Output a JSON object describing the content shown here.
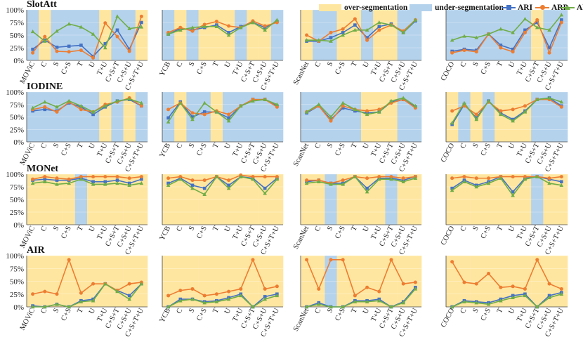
{
  "legend": {
    "over_label": "over-segmentation",
    "under_label": "under-segmentation",
    "ari_label": "ARI",
    "arp_label": "ARP",
    "arr_label": "ARR"
  },
  "colors": {
    "over": "#ffe6a0",
    "under": "#b4d2ec",
    "ARI": "#4472c4",
    "ARP": "#ed7d31",
    "ARR": "#70ad47"
  },
  "chart_data": {
    "type": "line",
    "yticks": [
      "100%",
      "75%",
      "50%",
      "25%",
      "0%"
    ],
    "ylim": [
      0,
      100
    ],
    "datasets": [
      "MOViC",
      "YCB",
      "ScanNet",
      "COCO"
    ],
    "series_names": [
      "ARI",
      "ARP",
      "ARR"
    ],
    "categories": {
      "MOViC": [
        "MOViC",
        "C",
        "S",
        "C+S",
        "T",
        "U",
        "T+U",
        "C+S+T",
        "C+S+U",
        "C+S+T+U"
      ],
      "YCB": [
        "YCB",
        "C",
        "S",
        "C+S",
        "T",
        "U",
        "T+U",
        "C+S+T",
        "C+S+U",
        "C+S+T+U"
      ],
      "ScanNet": [
        "ScanNet",
        "C",
        "S",
        "C+S",
        "T",
        "U",
        "T+U",
        "C+S+T",
        "C+S+U",
        "C+S+T+U"
      ],
      "COCO": [
        "COCO",
        "C",
        "S",
        "C+S",
        "T",
        "U",
        "T+U",
        "C+S+T",
        "C+S+U",
        "C+S+T+U"
      ]
    },
    "methods": [
      {
        "name": "SlotAtt",
        "panels": [
          {
            "dataset": "MOViC",
            "regions": [
              "under",
              "over",
              "under",
              "under",
              "under",
              "under",
              "over",
              "under",
              "under",
              "over"
            ],
            "series": {
              "ARI": [
                22,
                40,
                26,
                28,
                30,
                8,
                33,
                60,
                22,
                75
              ],
              "ARP": [
                15,
                47,
                18,
                17,
                20,
                5,
                74,
                47,
                18,
                87
              ],
              "ARR": [
                57,
                38,
                58,
                72,
                66,
                52,
                25,
                87,
                63,
                66
              ]
            }
          },
          {
            "dataset": "YCB",
            "regions": [
              "under",
              "over",
              "under",
              "over",
              "over",
              "over",
              "under",
              "over",
              "over",
              "under"
            ],
            "series": {
              "ARI": [
                52,
                63,
                60,
                65,
                70,
                55,
                67,
                75,
                65,
                77
              ],
              "ARP": [
                55,
                65,
                58,
                71,
                77,
                68,
                65,
                78,
                68,
                75
              ],
              "ARR": [
                52,
                60,
                65,
                67,
                67,
                50,
                65,
                75,
                60,
                80
              ]
            }
          },
          {
            "dataset": "ScanNet",
            "regions": [
              "over",
              "under",
              "under",
              "over",
              "over",
              "under",
              "over",
              "over",
              "under",
              "under"
            ],
            "series": {
              "ARI": [
                38,
                38,
                45,
                55,
                70,
                45,
                67,
                72,
                55,
                78
              ],
              "ARP": [
                50,
                38,
                55,
                62,
                82,
                40,
                60,
                70,
                58,
                80
              ],
              "ARR": [
                40,
                40,
                38,
                50,
                60,
                60,
                75,
                70,
                55,
                80
              ]
            }
          },
          {
            "dataset": "COCO",
            "regions": [
              "under",
              "under",
              "under",
              "under",
              "under",
              "under",
              "under",
              "over",
              "under",
              "under"
            ],
            "series": {
              "ARI": [
                18,
                22,
                20,
                52,
                30,
                22,
                60,
                75,
                25,
                80
              ],
              "ARP": [
                15,
                20,
                17,
                52,
                25,
                17,
                55,
                80,
                15,
                75
              ],
              "ARR": [
                40,
                48,
                45,
                52,
                62,
                55,
                82,
                65,
                60,
                90
              ]
            }
          }
        ]
      },
      {
        "name": "IODINE",
        "panels": [
          {
            "dataset": "MOViC",
            "regions": [
              "under",
              "under",
              "under",
              "under",
              "under",
              "under",
              "over",
              "under",
              "over",
              "under"
            ],
            "series": {
              "ARI": [
                62,
                65,
                62,
                78,
                70,
                55,
                70,
                82,
                85,
                72
              ],
              "ARP": [
                65,
                70,
                60,
                80,
                65,
                60,
                75,
                80,
                88,
                72
              ],
              "ARR": [
                68,
                80,
                70,
                82,
                72,
                60,
                72,
                82,
                86,
                78
              ]
            }
          },
          {
            "dataset": "YCB",
            "regions": [
              "under",
              "over",
              "under",
              "under",
              "over",
              "under",
              "under",
              "under",
              "under",
              "under"
            ],
            "series": {
              "ARI": [
                48,
                80,
                50,
                60,
                60,
                48,
                72,
                85,
                85,
                72
              ],
              "ARP": [
                65,
                78,
                58,
                55,
                62,
                55,
                72,
                85,
                85,
                70
              ],
              "ARR": [
                40,
                78,
                45,
                78,
                60,
                42,
                72,
                82,
                85,
                75
              ]
            }
          },
          {
            "dataset": "ScanNet",
            "regions": [
              "under",
              "under",
              "under",
              "under",
              "under",
              "over",
              "over",
              "over",
              "under",
              "under"
            ],
            "series": {
              "ARI": [
                58,
                72,
                45,
                68,
                62,
                58,
                60,
                80,
                85,
                70
              ],
              "ARP": [
                60,
                72,
                42,
                72,
                65,
                62,
                65,
                78,
                85,
                68
              ],
              "ARR": [
                60,
                75,
                50,
                78,
                65,
                55,
                60,
                82,
                88,
                72
              ]
            }
          },
          {
            "dataset": "COCO",
            "regions": [
              "over",
              "under",
              "over",
              "under",
              "over",
              "over",
              "over",
              "under",
              "under",
              "under"
            ],
            "series": {
              "ARI": [
                35,
                75,
                48,
                82,
                58,
                45,
                62,
                85,
                88,
                72
              ],
              "ARP": [
                62,
                72,
                55,
                80,
                62,
                65,
                72,
                85,
                85,
                70
              ],
              "ARR": [
                38,
                78,
                45,
                82,
                55,
                42,
                60,
                85,
                88,
                80
              ]
            }
          }
        ]
      },
      {
        "name": "MONet",
        "panels": [
          {
            "dataset": "MOViC",
            "regions": [
              "over",
              "over",
              "over",
              "over",
              "under",
              "over",
              "over",
              "over",
              "over",
              "over"
            ],
            "series": {
              "ARI": [
                88,
                90,
                88,
                88,
                92,
                85,
                85,
                88,
                82,
                90
              ],
              "ARP": [
                90,
                95,
                92,
                90,
                95,
                95,
                95,
                95,
                92,
                95
              ],
              "ARR": [
                82,
                85,
                80,
                82,
                90,
                80,
                80,
                82,
                78,
                82
              ]
            }
          },
          {
            "dataset": "YCB",
            "regions": [
              "over",
              "over",
              "over",
              "over",
              "over",
              "over",
              "over",
              "over",
              "over",
              "over"
            ],
            "series": {
              "ARI": [
                82,
                92,
                78,
                72,
                95,
                78,
                95,
                92,
                72,
                92
              ],
              "ARP": [
                92,
                95,
                88,
                88,
                95,
                88,
                98,
                95,
                95,
                95
              ],
              "ARR": [
                78,
                90,
                72,
                60,
                95,
                72,
                95,
                90,
                62,
                90
              ]
            }
          },
          {
            "dataset": "ScanNet",
            "regions": [
              "over",
              "over",
              "under",
              "over",
              "over",
              "over",
              "over",
              "under",
              "over",
              "over"
            ],
            "series": {
              "ARI": [
                85,
                88,
                82,
                82,
                95,
                72,
                92,
                92,
                88,
                95
              ],
              "ARP": [
                88,
                88,
                82,
                88,
                95,
                92,
                95,
                95,
                92,
                95
              ],
              "ARR": [
                82,
                85,
                80,
                80,
                95,
                65,
                90,
                90,
                85,
                92
              ]
            }
          },
          {
            "dataset": "COCO",
            "regions": [
              "over",
              "over",
              "over",
              "over",
              "over",
              "over",
              "over",
              "under",
              "over",
              "over"
            ],
            "series": {
              "ARI": [
                72,
                88,
                78,
                85,
                95,
                65,
                92,
                95,
                90,
                85
              ],
              "ARP": [
                92,
                95,
                92,
                92,
                95,
                95,
                95,
                95,
                92,
                95
              ],
              "ARR": [
                68,
                85,
                75,
                82,
                92,
                58,
                90,
                95,
                82,
                78
              ]
            }
          }
        ]
      },
      {
        "name": "AIR",
        "panels": [
          {
            "dataset": "MOViC",
            "regions": [
              "over",
              "over",
              "over",
              "over",
              "over",
              "over",
              "over",
              "over",
              "over",
              "over"
            ],
            "series": {
              "ARI": [
                2,
                0,
                5,
                0,
                12,
                15,
                45,
                32,
                22,
                45
              ],
              "ARP": [
                25,
                30,
                25,
                92,
                27,
                45,
                45,
                32,
                45,
                48
              ],
              "ARR": [
                0,
                0,
                5,
                0,
                10,
                12,
                45,
                30,
                15,
                45
              ]
            }
          },
          {
            "dataset": "YCB",
            "regions": [
              "over",
              "over",
              "over",
              "over",
              "over",
              "over",
              "over",
              "over",
              "over",
              "over"
            ],
            "series": {
              "ARI": [
                0,
                15,
                15,
                10,
                12,
                18,
                25,
                0,
                20,
                25
              ],
              "ARP": [
                22,
                32,
                35,
                22,
                25,
                30,
                35,
                92,
                35,
                40
              ],
              "ARR": [
                0,
                12,
                15,
                8,
                10,
                15,
                22,
                0,
                15,
                22
              ]
            }
          },
          {
            "dataset": "ScanNet",
            "regions": [
              "over",
              "over",
              "under",
              "over",
              "over",
              "over",
              "over",
              "over",
              "over",
              "over"
            ],
            "series": {
              "ARI": [
                0,
                8,
                0,
                0,
                12,
                12,
                15,
                0,
                10,
                38
              ],
              "ARP": [
                92,
                35,
                92,
                92,
                22,
                38,
                30,
                92,
                45,
                48
              ],
              "ARR": [
                0,
                5,
                0,
                0,
                10,
                10,
                12,
                0,
                8,
                35
              ]
            }
          },
          {
            "dataset": "COCO",
            "regions": [
              "over",
              "over",
              "over",
              "over",
              "over",
              "over",
              "over",
              "over",
              "over",
              "over"
            ],
            "series": {
              "ARI": [
                0,
                12,
                10,
                8,
                15,
                22,
                25,
                0,
                22,
                28
              ],
              "ARP": [
                88,
                48,
                45,
                65,
                38,
                40,
                35,
                92,
                45,
                35
              ],
              "ARR": [
                0,
                10,
                8,
                5,
                12,
                18,
                22,
                0,
                18,
                25
              ]
            }
          }
        ]
      }
    ]
  }
}
